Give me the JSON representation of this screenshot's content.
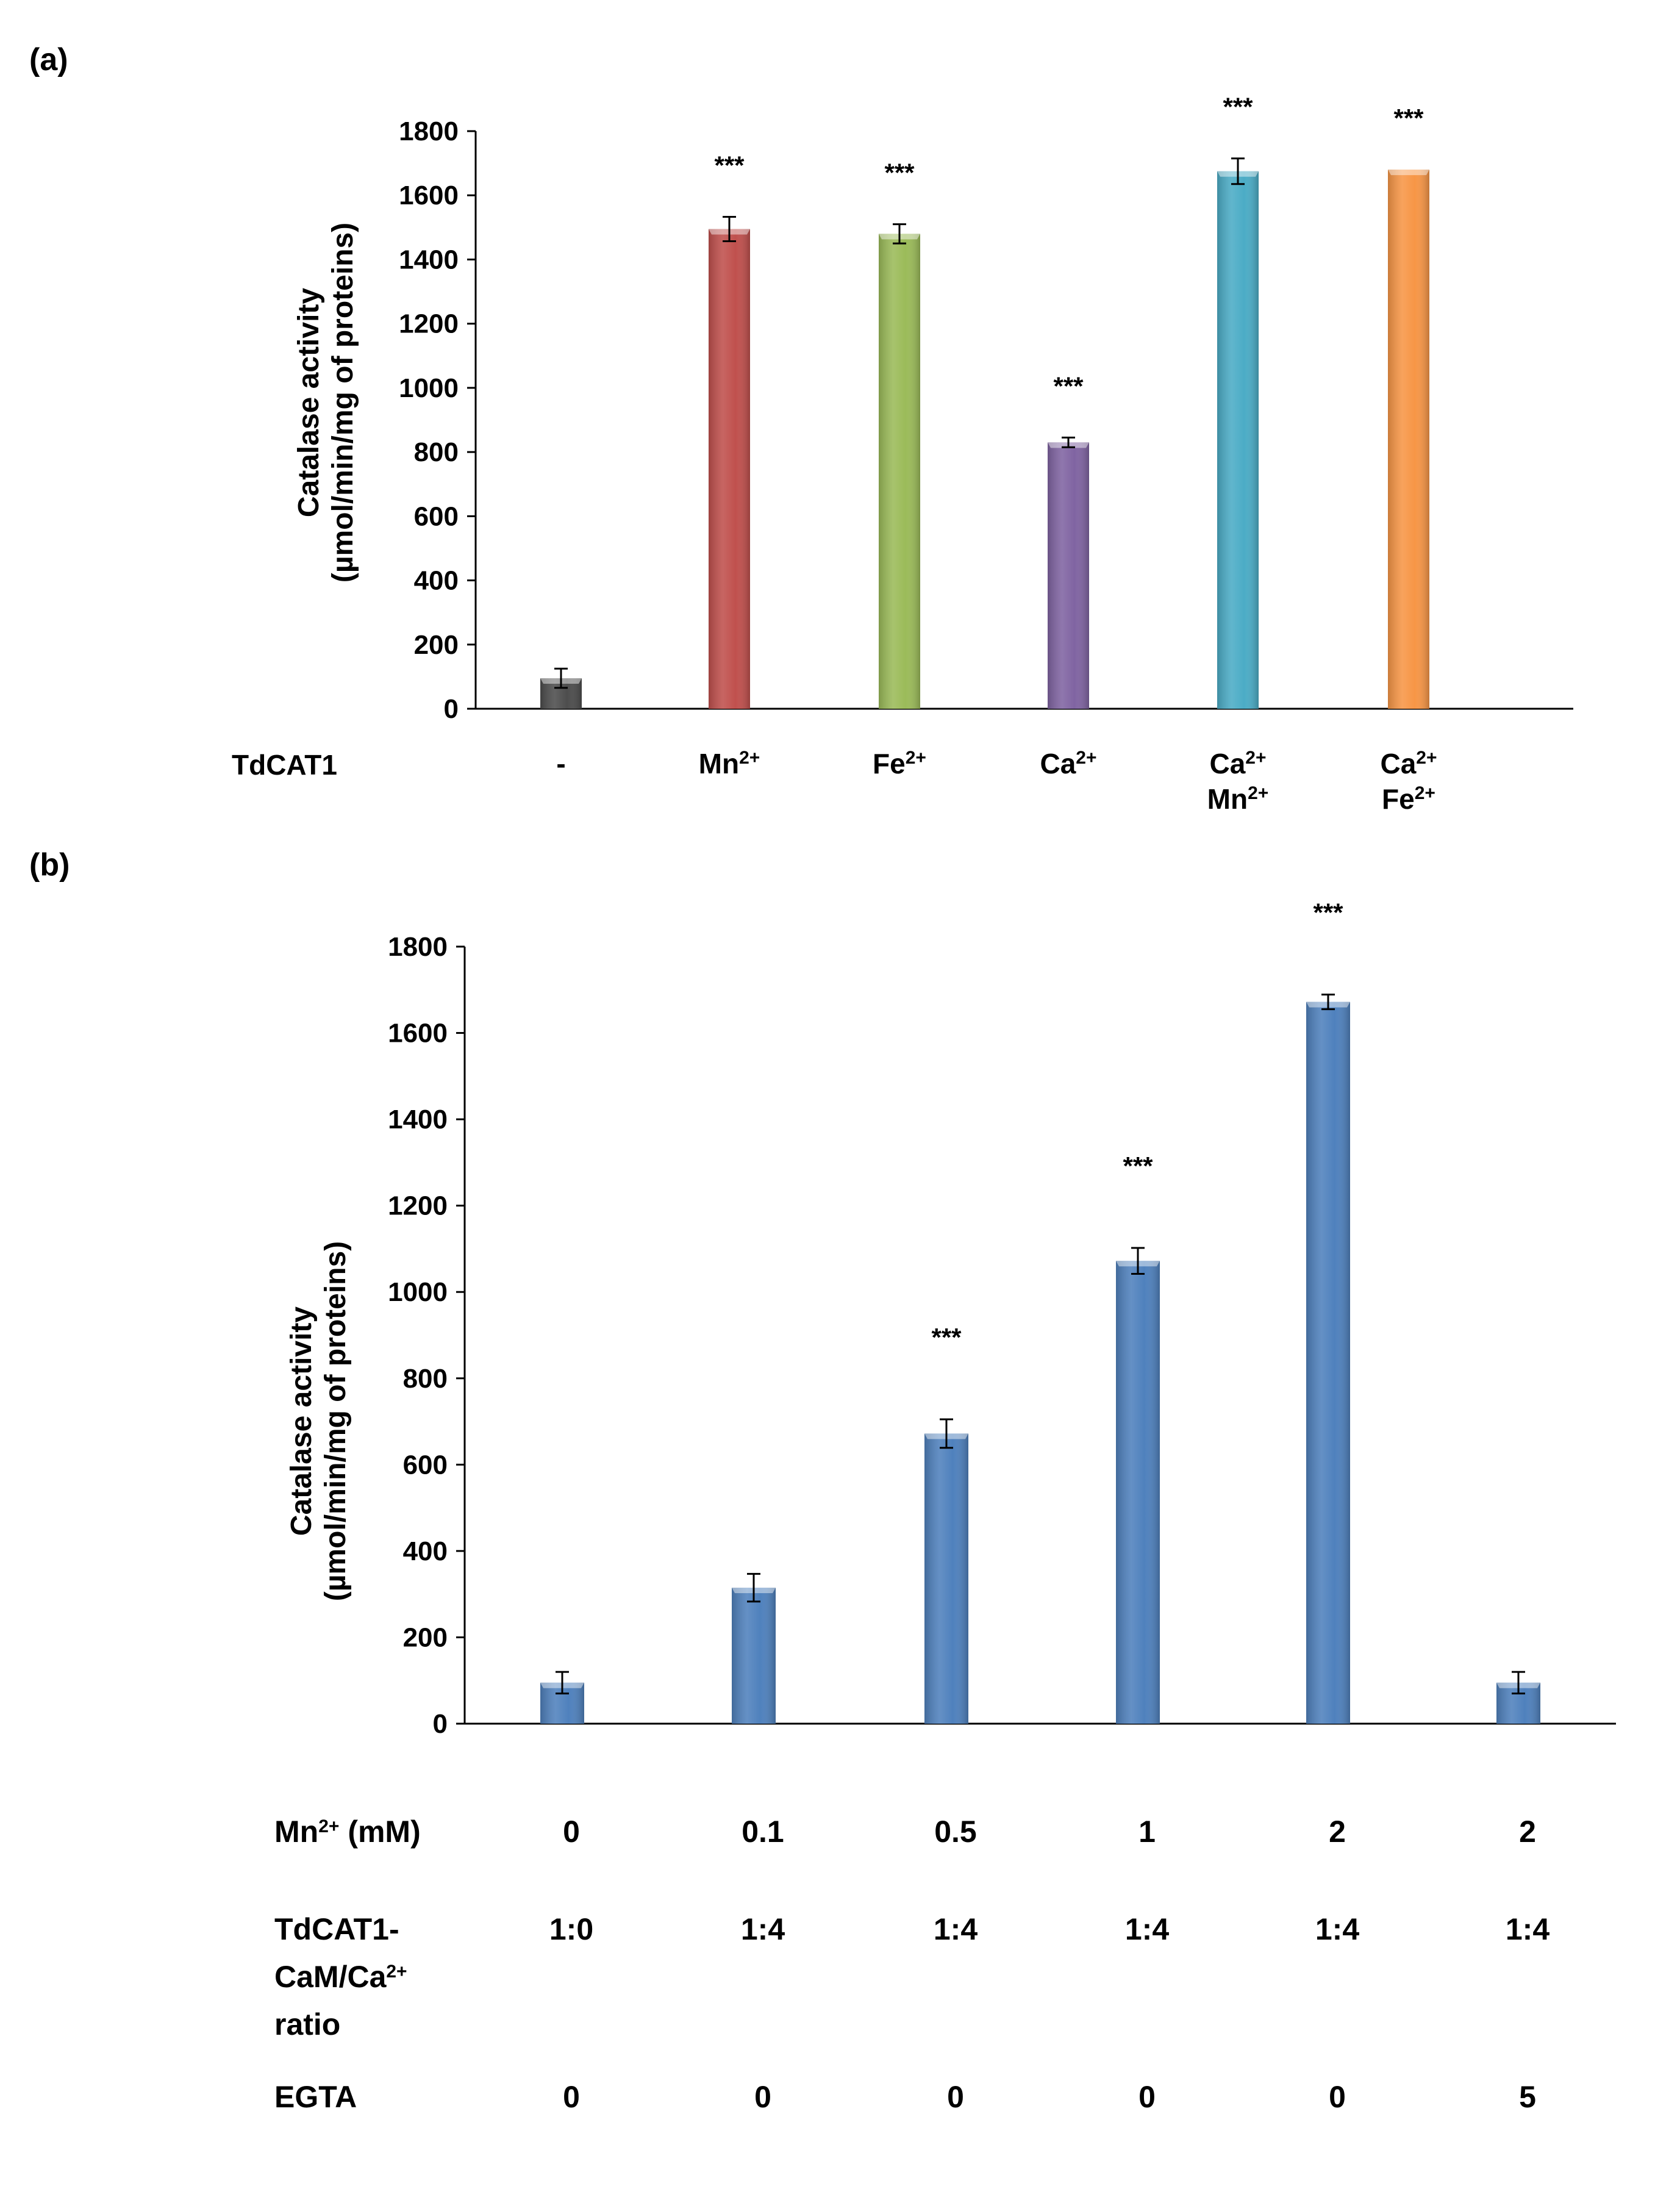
{
  "colors": {
    "axis": "#000000",
    "bar_b": "#4f81bd",
    "bar_b_light": "#8db4e2"
  },
  "chart_data": [
    {
      "type": "bar",
      "panel_label": "(a)",
      "title": "",
      "ylabel_line1": "Catalase activity",
      "ylabel_line2": "(µmol/min/mg of proteins)",
      "ylim": [
        0,
        1800
      ],
      "yticks": [
        "0",
        "200",
        "400",
        "600",
        "800",
        "1000",
        "1200",
        "1400",
        "1600",
        "1800"
      ],
      "row_label": "TdCAT1",
      "categories": [
        "-",
        "Mn2+",
        "Fe2+",
        "Ca2+",
        "Ca2+ Mn2+",
        "Ca2+ Fe2+"
      ],
      "category_lines": [
        [
          {
            "base": "-",
            "sup": ""
          }
        ],
        [
          {
            "base": "Mn",
            "sup": "2+"
          }
        ],
        [
          {
            "base": "Fe",
            "sup": "2+"
          }
        ],
        [
          {
            "base": "Ca",
            "sup": "2+"
          }
        ],
        [
          {
            "base": "Ca",
            "sup": "2+"
          },
          {
            "base": "Mn",
            "sup": "2+"
          }
        ],
        [
          {
            "base": "Ca",
            "sup": "2+"
          },
          {
            "base": "Fe",
            "sup": "2+"
          }
        ]
      ],
      "values": [
        95,
        1495,
        1480,
        830,
        1675,
        1680
      ],
      "errors": [
        30,
        38,
        30,
        15,
        40,
        0
      ],
      "significance": [
        "",
        "***",
        "***",
        "***",
        "***",
        "***"
      ],
      "colors": [
        "#4d4d4d",
        "#c0504d",
        "#9bbb59",
        "#8064a2",
        "#4bacc6",
        "#f79646"
      ]
    },
    {
      "type": "bar",
      "panel_label": "(b)",
      "title": "",
      "ylabel_line1": "Catalase activity",
      "ylabel_line2": "(µmol/min/mg of proteins)",
      "ylim": [
        0,
        1800
      ],
      "yticks": [
        "0",
        "200",
        "400",
        "600",
        "800",
        "1000",
        "1200",
        "1400",
        "1600",
        "1800"
      ],
      "values": [
        95,
        315,
        672,
        1072,
        1672,
        95
      ],
      "errors": [
        25,
        32,
        33,
        30,
        17,
        25
      ],
      "significance": [
        "",
        "",
        "***",
        "***",
        "***",
        ""
      ],
      "table": {
        "rows": [
          {
            "label_lines": [
              {
                "base": "Mn",
                "sup": "2+",
                "tail": " (mM)"
              }
            ],
            "values": [
              "0",
              "0.1",
              "0.5",
              "1",
              "2",
              "2"
            ]
          },
          {
            "label_lines": [
              {
                "base": "TdCAT1-",
                "sup": "",
                "tail": ""
              },
              {
                "base": "CaM/Ca",
                "sup": "2+",
                "tail": ""
              },
              {
                "base": "ratio",
                "sup": "",
                "tail": ""
              }
            ],
            "values": [
              "1:0",
              "1:4",
              "1:4",
              "1:4",
              "1:4",
              "1:4"
            ]
          },
          {
            "label_lines": [
              {
                "base": "EGTA",
                "sup": "",
                "tail": ""
              }
            ],
            "values": [
              "0",
              "0",
              "0",
              "0",
              "0",
              "5"
            ]
          }
        ]
      }
    }
  ]
}
